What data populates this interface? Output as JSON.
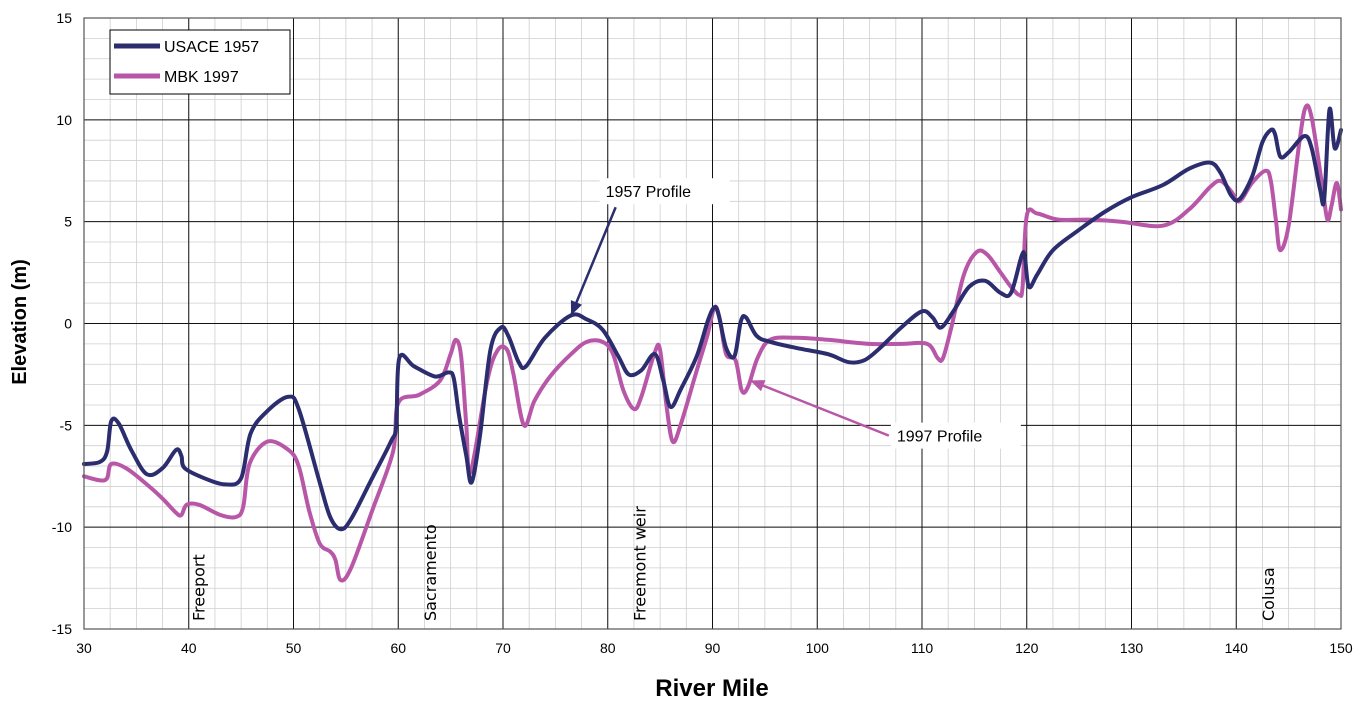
{
  "chart_data": {
    "type": "line",
    "xlabel": "River Mile",
    "ylabel": "Elevation (m)",
    "xlim": [
      30,
      150
    ],
    "ylim": [
      -15,
      15
    ],
    "x_ticks": [
      30,
      40,
      50,
      60,
      70,
      80,
      90,
      100,
      110,
      120,
      130,
      140,
      150
    ],
    "y_ticks": [
      -15,
      -10,
      -5,
      0,
      5,
      10,
      15
    ],
    "grid": true,
    "minor_grid": true,
    "legend_position": "top-left",
    "series": [
      {
        "name": "USACE 1957",
        "color": "#2b2d6e",
        "points": [
          [
            30,
            -6.9
          ],
          [
            31.5,
            -6.8
          ],
          [
            32.2,
            -6.3
          ],
          [
            32.6,
            -4.8
          ],
          [
            33.3,
            -4.9
          ],
          [
            34.5,
            -6.2
          ],
          [
            36,
            -7.4
          ],
          [
            37.5,
            -7.1
          ],
          [
            38.8,
            -6.2
          ],
          [
            39.3,
            -6.5
          ],
          [
            39.6,
            -7.1
          ],
          [
            41.5,
            -7.6
          ],
          [
            43.5,
            -7.9
          ],
          [
            45,
            -7.6
          ],
          [
            45.9,
            -5.4
          ],
          [
            47.5,
            -4.3
          ],
          [
            49.5,
            -3.6
          ],
          [
            50.5,
            -4.2
          ],
          [
            52.5,
            -7.8
          ],
          [
            53.5,
            -9.5
          ],
          [
            54.5,
            -10.1
          ],
          [
            55.5,
            -9.6
          ],
          [
            57.5,
            -7.6
          ],
          [
            59.3,
            -5.8
          ],
          [
            59.8,
            -5.0
          ],
          [
            60.1,
            -1.7
          ],
          [
            61.5,
            -2.1
          ],
          [
            63.5,
            -2.6
          ],
          [
            64.8,
            -2.4
          ],
          [
            65.3,
            -2.7
          ],
          [
            65.8,
            -4.5
          ],
          [
            66.5,
            -6.5
          ],
          [
            67,
            -7.8
          ],
          [
            67.8,
            -5.5
          ],
          [
            68.8,
            -1.3
          ],
          [
            69.8,
            -0.2
          ],
          [
            70.5,
            -0.6
          ],
          [
            71.5,
            -1.9
          ],
          [
            72.2,
            -2.1
          ],
          [
            74,
            -0.7
          ],
          [
            76.5,
            0.4
          ],
          [
            78,
            0.2
          ],
          [
            79.5,
            -0.3
          ],
          [
            81,
            -1.6
          ],
          [
            82,
            -2.5
          ],
          [
            83.2,
            -2.3
          ],
          [
            84.5,
            -1.5
          ],
          [
            85.3,
            -2.8
          ],
          [
            86,
            -4.1
          ],
          [
            87,
            -3.2
          ],
          [
            88.5,
            -1.6
          ],
          [
            89.6,
            0.2
          ],
          [
            90.2,
            0.8
          ],
          [
            90.6,
            0.4
          ],
          [
            91.3,
            -1.2
          ],
          [
            92.1,
            -1.6
          ],
          [
            92.7,
            0.1
          ],
          [
            93.2,
            0.3
          ],
          [
            94.2,
            -0.6
          ],
          [
            95.5,
            -0.9
          ],
          [
            98,
            -1.2
          ],
          [
            101,
            -1.5
          ],
          [
            103,
            -1.9
          ],
          [
            104.5,
            -1.8
          ],
          [
            106,
            -1.2
          ],
          [
            108,
            -0.2
          ],
          [
            110,
            0.6
          ],
          [
            111,
            0.3
          ],
          [
            111.8,
            -0.2
          ],
          [
            113,
            0.6
          ],
          [
            114.5,
            1.8
          ],
          [
            116,
            2.1
          ],
          [
            117.5,
            1.5
          ],
          [
            118.5,
            1.5
          ],
          [
            119.5,
            3.3
          ],
          [
            119.8,
            3.3
          ],
          [
            120.2,
            1.8
          ],
          [
            121,
            2.4
          ],
          [
            122.5,
            3.6
          ],
          [
            125,
            4.6
          ],
          [
            127.5,
            5.5
          ],
          [
            130,
            6.2
          ],
          [
            133,
            6.8
          ],
          [
            135.5,
            7.6
          ],
          [
            137.5,
            7.9
          ],
          [
            138.5,
            7.4
          ],
          [
            139.5,
            6.3
          ],
          [
            140.3,
            6.1
          ],
          [
            141.5,
            7.2
          ],
          [
            142.5,
            8.9
          ],
          [
            143.3,
            9.5
          ],
          [
            143.7,
            9.3
          ],
          [
            144.2,
            8.2
          ],
          [
            145,
            8.4
          ],
          [
            146.5,
            9.2
          ],
          [
            147.2,
            8.6
          ],
          [
            148,
            6.6
          ],
          [
            148.4,
            6.1
          ],
          [
            148.9,
            10.5
          ],
          [
            149.4,
            8.6
          ],
          [
            150,
            9.5
          ]
        ]
      },
      {
        "name": "MBK 1997",
        "color": "#b857a8",
        "points": [
          [
            30,
            -7.5
          ],
          [
            31.5,
            -7.7
          ],
          [
            32.2,
            -7.6
          ],
          [
            32.6,
            -6.9
          ],
          [
            34,
            -7.1
          ],
          [
            36,
            -7.9
          ],
          [
            37.5,
            -8.6
          ],
          [
            38.8,
            -9.3
          ],
          [
            39.3,
            -9.4
          ],
          [
            39.8,
            -8.9
          ],
          [
            41,
            -8.9
          ],
          [
            43,
            -9.4
          ],
          [
            44.5,
            -9.5
          ],
          [
            45.2,
            -9.0
          ],
          [
            45.8,
            -6.9
          ],
          [
            47.5,
            -5.8
          ],
          [
            49.5,
            -6.2
          ],
          [
            50.5,
            -7.0
          ],
          [
            51.5,
            -9.2
          ],
          [
            52.5,
            -10.8
          ],
          [
            53.5,
            -11.2
          ],
          [
            54,
            -11.6
          ],
          [
            54.5,
            -12.6
          ],
          [
            55.5,
            -12.0
          ],
          [
            57.5,
            -9.2
          ],
          [
            59.5,
            -6.3
          ],
          [
            60,
            -3.9
          ],
          [
            62,
            -3.5
          ],
          [
            64,
            -2.8
          ],
          [
            65,
            -1.5
          ],
          [
            65.5,
            -0.8
          ],
          [
            66,
            -1.6
          ],
          [
            66.5,
            -5.0
          ],
          [
            66.9,
            -7.3
          ],
          [
            68.5,
            -2.8
          ],
          [
            69.5,
            -1.3
          ],
          [
            70.4,
            -1.3
          ],
          [
            71,
            -2.5
          ],
          [
            72,
            -5.0
          ],
          [
            73,
            -3.8
          ],
          [
            74.5,
            -2.6
          ],
          [
            76.5,
            -1.5
          ],
          [
            78,
            -0.9
          ],
          [
            79.5,
            -0.9
          ],
          [
            80.5,
            -1.5
          ],
          [
            81.5,
            -3.3
          ],
          [
            82.5,
            -4.2
          ],
          [
            83.2,
            -3.6
          ],
          [
            84.5,
            -1.4
          ],
          [
            85,
            -1.3
          ],
          [
            85.6,
            -4.0
          ],
          [
            86.2,
            -5.8
          ],
          [
            87,
            -4.9
          ],
          [
            88.5,
            -2.3
          ],
          [
            89.5,
            -0.6
          ],
          [
            90.2,
            0.8
          ],
          [
            90.7,
            0.2
          ],
          [
            91.3,
            -1.5
          ],
          [
            92.2,
            -1.8
          ],
          [
            92.8,
            -3.3
          ],
          [
            93.4,
            -3.1
          ],
          [
            94.3,
            -1.7
          ],
          [
            95.5,
            -0.8
          ],
          [
            98,
            -0.7
          ],
          [
            101,
            -0.8
          ],
          [
            105,
            -1.0
          ],
          [
            108,
            -1.0
          ],
          [
            110.5,
            -1.0
          ],
          [
            111.5,
            -1.7
          ],
          [
            112,
            -1.7
          ],
          [
            112.8,
            -0.2
          ],
          [
            114,
            2.4
          ],
          [
            115.2,
            3.5
          ],
          [
            116.2,
            3.4
          ],
          [
            117.5,
            2.5
          ],
          [
            118.5,
            1.8
          ],
          [
            119.3,
            1.4
          ],
          [
            119.6,
            1.8
          ],
          [
            120,
            5.3
          ],
          [
            121,
            5.4
          ],
          [
            123,
            5.1
          ],
          [
            126,
            5.1
          ],
          [
            129,
            5.0
          ],
          [
            133,
            4.8
          ],
          [
            135.5,
            5.6
          ],
          [
            137.5,
            6.7
          ],
          [
            138.5,
            7.0
          ],
          [
            139.5,
            6.5
          ],
          [
            140.3,
            6.0
          ],
          [
            141.5,
            6.9
          ],
          [
            142.8,
            7.5
          ],
          [
            143.3,
            7.0
          ],
          [
            143.8,
            5.0
          ],
          [
            144.2,
            3.6
          ],
          [
            145,
            4.8
          ],
          [
            146,
            8.8
          ],
          [
            146.6,
            10.6
          ],
          [
            147.2,
            10.1
          ],
          [
            148.2,
            6.8
          ],
          [
            148.7,
            5.1
          ],
          [
            149.1,
            5.8
          ],
          [
            149.6,
            6.9
          ],
          [
            150,
            5.6
          ]
        ]
      }
    ],
    "annotations": [
      {
        "text": "1957 Profile",
        "target": [
          76.5,
          0.4
        ],
        "label_at": [
          79.8,
          6.2
        ],
        "color": "#2b2d6e"
      },
      {
        "text": "1997 Profile",
        "target": [
          93.6,
          -2.8
        ],
        "label_at": [
          107.6,
          -5.8
        ],
        "color": "#b857a8"
      }
    ],
    "place_labels": [
      {
        "text": "Freeport",
        "x": 41.5
      },
      {
        "text": "Sacramento",
        "x": 63.6
      },
      {
        "text": "Freemont weir",
        "x": 83.6
      },
      {
        "text": "Colusa",
        "x": 143.6
      }
    ]
  }
}
